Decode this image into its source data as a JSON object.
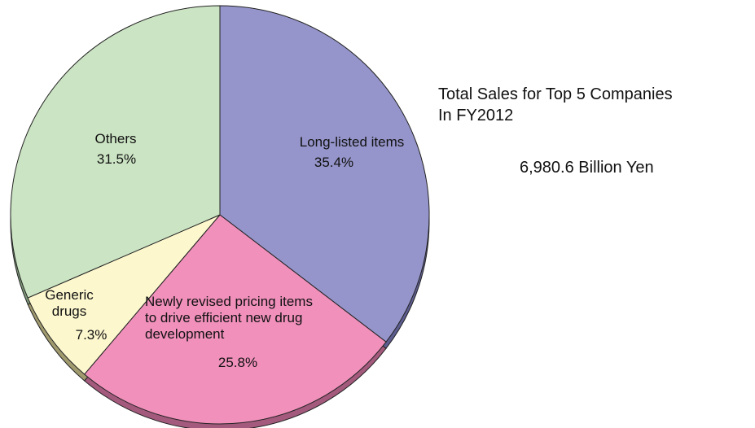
{
  "chart_data": {
    "type": "pie",
    "title": "",
    "start_angle_deg": 0,
    "direction": "clockwise",
    "slices": [
      {
        "label": [
          "Long-listed items"
        ],
        "value_text": "35.4%",
        "value": 35.4,
        "color": "#9595cb",
        "dark": "#5c5c8f"
      },
      {
        "label": [
          "Newly revised pricing items",
          "to drive efficient new drug",
          "development"
        ],
        "value_text": "25.8%",
        "value": 25.8,
        "color": "#f090bb",
        "dark": "#a45a7c"
      },
      {
        "label": [
          "Generic",
          "drugs"
        ],
        "value_text": "7.3%",
        "value": 7.3,
        "color": "#fcf7cd",
        "dark": "#a09a6e"
      },
      {
        "label": [
          "Others"
        ],
        "value_text": "31.5%",
        "value": 31.5,
        "color": "#cbe4c3",
        "dark": "#7f9a78"
      }
    ]
  },
  "side_panel": {
    "title_lines": [
      "Total Sales for Top 5 Companies",
      "In FY2012"
    ],
    "total": "6,980.6 Billion Yen"
  }
}
